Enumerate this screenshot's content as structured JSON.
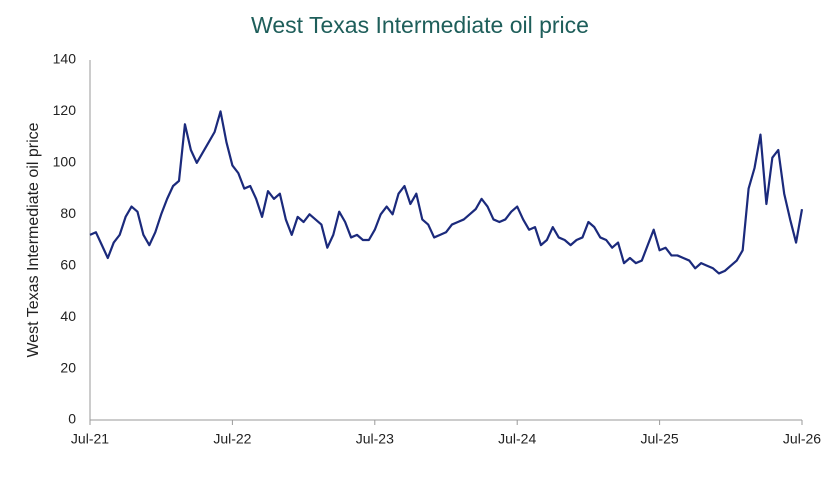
{
  "chart_data": {
    "type": "line",
    "title": "West Texas Intermediate oil price",
    "y_label": "West Texas Intermediate oil price",
    "categories": [
      "Jul-21",
      null,
      null,
      null,
      null,
      null,
      null,
      null,
      null,
      null,
      null,
      null,
      null,
      null,
      null,
      null,
      null,
      null,
      null,
      null,
      null,
      null,
      null,
      null,
      "Jul-22",
      null,
      null,
      null,
      null,
      null,
      null,
      null,
      null,
      null,
      null,
      null,
      null,
      null,
      null,
      null,
      null,
      null,
      null,
      null,
      null,
      null,
      null,
      null,
      "Jul-23",
      null,
      null,
      null,
      null,
      null,
      null,
      null,
      null,
      null,
      null,
      null,
      null,
      null,
      null,
      null,
      null,
      null,
      null,
      null,
      null,
      null,
      null,
      null,
      "Jul-24",
      null,
      null,
      null,
      null,
      null,
      null,
      null,
      null,
      null,
      null,
      null,
      null,
      null,
      null,
      null,
      null,
      null,
      null,
      null,
      null,
      null,
      null,
      null,
      "Jul-25",
      null,
      null,
      null,
      null,
      null,
      null,
      null,
      null,
      null,
      null,
      null,
      null,
      null,
      null,
      null,
      null,
      null,
      null,
      null,
      null,
      null,
      null,
      null,
      "Jul-26"
    ],
    "series": [
      {
        "name": "West Texas Intermediate oil price",
        "color": "#1b2a7c",
        "values": [
          72,
          73,
          68,
          63,
          69,
          72,
          79,
          83,
          81,
          72,
          68,
          73,
          80,
          86,
          91,
          93,
          115,
          105,
          100,
          104,
          108,
          112,
          120,
          108,
          99,
          96,
          90,
          91,
          86,
          79,
          89,
          86,
          88,
          78,
          72,
          79,
          77,
          80,
          78,
          76,
          67,
          72,
          81,
          77,
          71,
          72,
          70,
          70,
          74,
          80,
          83,
          80,
          88,
          91,
          84,
          88,
          78,
          76,
          71,
          72,
          73,
          76,
          77,
          78,
          80,
          82,
          86,
          83,
          78,
          77,
          78,
          81,
          83,
          78,
          74,
          75,
          68,
          70,
          75,
          71,
          70,
          68,
          70,
          71,
          77,
          75,
          71,
          70,
          67,
          69,
          61,
          63,
          61,
          62,
          68,
          74,
          66,
          67,
          64,
          64,
          63,
          62,
          59,
          61,
          60,
          59,
          57,
          58,
          60,
          62,
          66,
          90,
          98,
          111,
          84,
          102,
          105,
          88,
          78,
          69,
          82
        ]
      }
    ],
    "ylim": [
      0,
      140
    ],
    "yticks": [
      0,
      20,
      40,
      60,
      80,
      100,
      120,
      140
    ],
    "grid": false
  }
}
